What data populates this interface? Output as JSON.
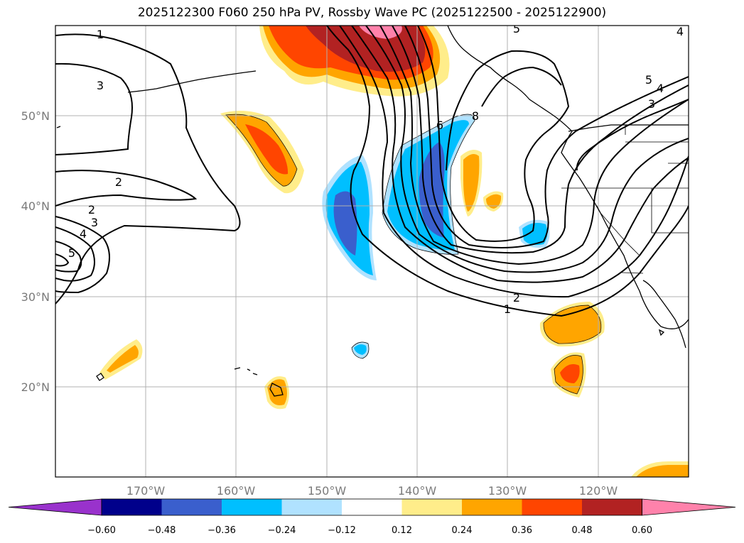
{
  "title": "2025122300 F060 250 hPa PV, Rossby Wave PC (2025122500 - 2025122900)",
  "map": {
    "lon_ticks": [
      "170°W",
      "160°W",
      "150°W",
      "140°W",
      "130°W",
      "120°W"
    ],
    "lat_ticks": [
      "50°N",
      "40°N",
      "30°N",
      "20°N"
    ],
    "grid": true
  },
  "contour_labels": [
    "1",
    "3",
    "2",
    "2",
    "3",
    "4",
    "5",
    "6",
    "8",
    "5",
    "4",
    "3",
    "2",
    "1",
    "5",
    "4"
  ],
  "colorbar": {
    "tick_labels": [
      "−0.60",
      "−0.48",
      "−0.36",
      "−0.24",
      "−0.12",
      "0.12",
      "0.24",
      "0.36",
      "0.48",
      "0.60"
    ],
    "colors": [
      "#9932cc",
      "#00008b",
      "#3a5fcd",
      "#00bfff",
      "#b0e2ff",
      "#ffffff",
      "#ffed8a",
      "#ffa500",
      "#ff4500",
      "#b22222",
      "#ff82ab"
    ]
  }
}
